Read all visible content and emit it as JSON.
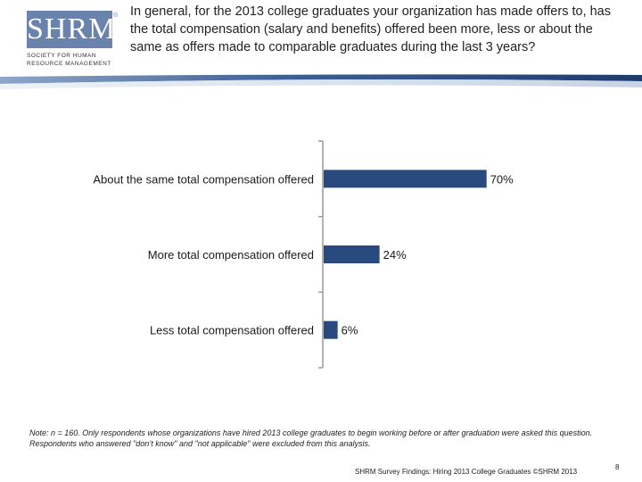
{
  "logo": {
    "letters": "SHRM",
    "registered": "®",
    "subtitle_line1": "Society for Human",
    "subtitle_line2": "Resource Management"
  },
  "question": "In general, for the 2013 college graduates your organization has made offers to, has the total compensation (salary and benefits) offered been more, less or about the same as offers made to comparable graduates during the last 3 years?",
  "colors": {
    "bar": "#284a7e",
    "band_dark": "#1d3c6e",
    "band_light": "#dfe6f2",
    "axis": "#999999"
  },
  "chart_data": {
    "type": "bar",
    "orientation": "horizontal",
    "categories": [
      "About the same total compensation offered",
      "More total compensation offered",
      "Less total compensation offered"
    ],
    "values": [
      70,
      24,
      6
    ],
    "value_labels": [
      "70%",
      "24%",
      "6%"
    ],
    "unit": "%",
    "xlim": [
      0,
      100
    ],
    "grid": false,
    "title": "",
    "xlabel": "",
    "ylabel": ""
  },
  "note": "Note: n = 160. Only respondents whose organizations have hired 2013 college graduates to begin working before or after graduation were asked this question. Respondents who answered \"don’t know\" and \"not applicable\" were excluded from this analysis.",
  "footer": "SHRM Survey Findings: Hiring 2013 College Graduates ©SHRM 2013",
  "page_number": "8"
}
